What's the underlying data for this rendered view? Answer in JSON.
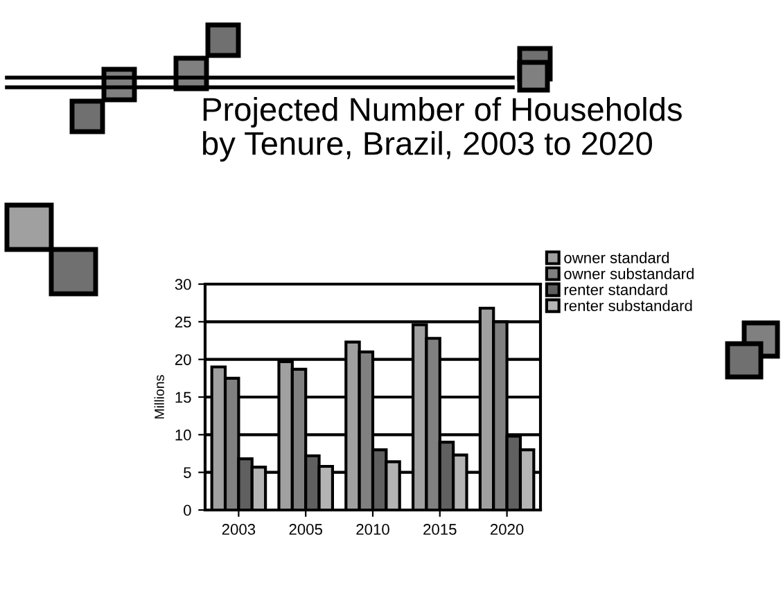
{
  "chart_data": {
    "type": "bar",
    "title": "Projected Number of Households\nby Tenure, Brazil, 2003 to 2020",
    "ylabel": "Millions",
    "categories": [
      "2003",
      "2005",
      "2010",
      "2015",
      "2020"
    ],
    "series": [
      {
        "name": "owner standard",
        "color": "#a0a0a0",
        "values": [
          19,
          19.7,
          22.3,
          24.6,
          26.8
        ]
      },
      {
        "name": "owner substandard",
        "color": "#808080",
        "values": [
          17.5,
          18.7,
          21,
          22.8,
          25
        ]
      },
      {
        "name": "renter standard",
        "color": "#606060",
        "values": [
          6.8,
          7.2,
          8,
          9,
          9.8
        ]
      },
      {
        "name": "renter substandard",
        "color": "#b4b4b4",
        "values": [
          5.7,
          5.8,
          6.4,
          7.3,
          8
        ]
      }
    ],
    "ylim": [
      0,
      30
    ],
    "yticks": [
      0,
      5,
      10,
      15,
      20,
      25,
      30
    ],
    "grid": "y",
    "legend": "top right"
  }
}
